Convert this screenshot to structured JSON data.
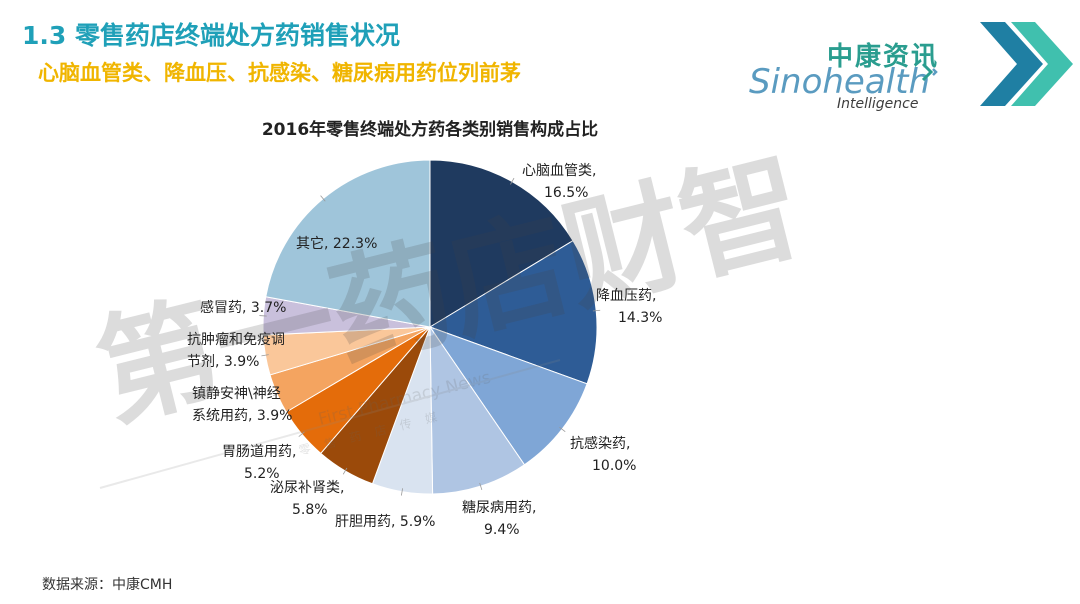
{
  "header": {
    "title": "1.3 零售药店终端处方药销售状况",
    "subtitle": "心脑血管类、降血压、抗感染、糖尿病用药位列前茅"
  },
  "logo": {
    "cn": "中康资讯",
    "en": "Sinohealth",
    "en_sub": "Intelligence"
  },
  "watermark": {
    "cn": "第一药店财智",
    "en": "First Pharmacy News",
    "sub": "零售药店传媒"
  },
  "source": "数据来源：中康CMH",
  "colors": {
    "title": "#1FA0B8",
    "subtitle": "#F0B500"
  },
  "chart_data": {
    "type": "pie",
    "title": "2016年零售终端处方药各类别销售构成占比",
    "slices": [
      {
        "label": "心脑血管类",
        "value": 16.5,
        "label_text": "16.5%",
        "color": "#1F3A5F"
      },
      {
        "label": "降血压药",
        "value": 14.3,
        "label_text": "14.3%",
        "color": "#2E5C96"
      },
      {
        "label": "抗感染药",
        "value": 10.0,
        "label_text": "10.0%",
        "color": "#7FA6D6"
      },
      {
        "label": "糖尿病用药",
        "value": 9.4,
        "label_text": "9.4%",
        "color": "#AFC5E3"
      },
      {
        "label": "肝胆用药",
        "value": 5.9,
        "label_text": "5.9%",
        "color": "#D9E3F0"
      },
      {
        "label": "泌尿补肾类",
        "value": 5.8,
        "label_text": "5.8%",
        "color": "#9B4A0A"
      },
      {
        "label": "胃肠道用药",
        "value": 5.2,
        "label_text": "5.2%",
        "color": "#E46C0A"
      },
      {
        "label": "镇静安神\\神经系统用药",
        "value": 3.9,
        "label_text": "3.9%",
        "color": "#F4A460"
      },
      {
        "label": "抗肿瘤和免疫调节剂",
        "value": 3.9,
        "label_text": "3.9%",
        "color": "#FAC79A"
      },
      {
        "label": "感冒药",
        "value": 3.7,
        "label_text": "3.7%",
        "color": "#C9C0DC"
      },
      {
        "label": "其它",
        "value": 22.3,
        "label_text": "22.3%",
        "color": "#9FC5DA"
      }
    ],
    "labels_display": [
      {
        "lines": [
          "心脑血管类,",
          "16.5%"
        ]
      },
      {
        "lines": [
          "降血压药,",
          "14.3%"
        ]
      },
      {
        "lines": [
          "抗感染药,",
          "10.0%"
        ]
      },
      {
        "lines": [
          "糖尿病用药,",
          "9.4%"
        ]
      },
      {
        "lines": [
          "肝胆用药, 5.9%"
        ]
      },
      {
        "lines": [
          "泌尿补肾类,",
          "5.8%"
        ]
      },
      {
        "lines": [
          "胃肠道用药,",
          "5.2%"
        ]
      },
      {
        "lines": [
          "镇静安神\\神经",
          "系统用药, 3.9%"
        ]
      },
      {
        "lines": [
          "抗肿瘤和免疫调",
          "节剂, 3.9%"
        ]
      },
      {
        "lines": [
          "感冒药, 3.7%"
        ]
      },
      {
        "lines": [
          "其它, 22.3%"
        ]
      }
    ]
  }
}
